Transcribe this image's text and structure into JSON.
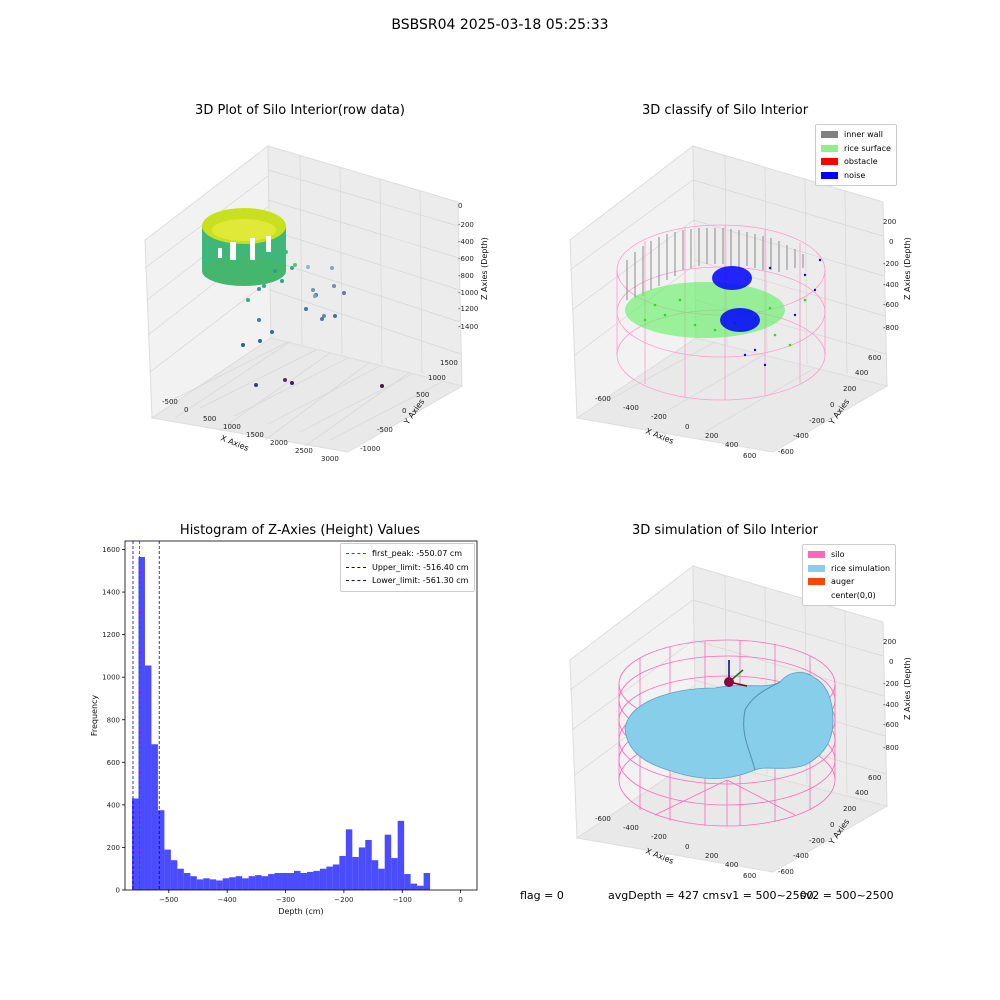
{
  "suptitle": "BSBSR04 2025-03-18 05:25:33",
  "panels": {
    "raw": {
      "title": "3D Plot of Silo Interior(row data)",
      "xlabel": "X Axies",
      "ylabel": "Y Axies",
      "zlabel": "Z Axies (Depth)",
      "xticks": [
        "-500",
        "0",
        "500",
        "1000",
        "1500",
        "2000",
        "2500",
        "3000"
      ],
      "yticks": [
        "-1000",
        "-500",
        "0",
        "500",
        "1000",
        "1500"
      ],
      "zticks": [
        "0",
        "-200",
        "-400",
        "-600",
        "-800",
        "-1000",
        "-1200",
        "-1400"
      ]
    },
    "classify": {
      "title": "3D classify of Silo Interior",
      "xlabel": "X Axies",
      "ylabel": "Y Axies",
      "zlabel": "Z Axies (Depth)",
      "xticks": [
        "-600",
        "-400",
        "-200",
        "0",
        "200",
        "400",
        "600"
      ],
      "yticks": [
        "-600",
        "-400",
        "-200",
        "0",
        "200",
        "400",
        "600"
      ],
      "zticks": [
        "200",
        "0",
        "-200",
        "-400",
        "-600",
        "-800"
      ],
      "legend": [
        {
          "label": "inner wall",
          "color": "#808080"
        },
        {
          "label": "rice surface",
          "color": "#90ee90"
        },
        {
          "label": "obstacle",
          "color": "#ff0000"
        },
        {
          "label": "noise",
          "color": "#0000ff"
        }
      ]
    },
    "histogram": {
      "title": "Histogram of Z-Axies (Height) Values",
      "legend": [
        {
          "label": "first_peak: -550.07 cm",
          "color": "#ff0000"
        },
        {
          "label": "Upper_limit: -516.40 cm",
          "color": "#0000aa"
        },
        {
          "label": "Lower_limit: -561.30 cm",
          "color": "#0000aa"
        }
      ]
    },
    "simulation": {
      "title": "3D simulation of Silo Interior",
      "xlabel": "X Axies",
      "ylabel": "Y Axies",
      "zlabel": "Z Axies (Depth)",
      "xticks": [
        "-600",
        "-400",
        "-200",
        "0",
        "200",
        "400",
        "600"
      ],
      "yticks": [
        "-600",
        "-400",
        "-200",
        "0",
        "200",
        "400",
        "600"
      ],
      "zticks": [
        "200",
        "0",
        "-200",
        "-400",
        "-600",
        "-800"
      ],
      "legend": [
        {
          "label": "silo",
          "color": "#ff69b4"
        },
        {
          "label": "rice simulation",
          "color": "#87ceeb"
        },
        {
          "label": "auger",
          "color": "#ff4500"
        },
        {
          "label": "center(0,0)",
          "color": "#ffffff"
        }
      ]
    }
  },
  "footer": {
    "flag": "flag = 0",
    "avg": "avgDepth = 427 cm",
    "sv1": "sv1 = 500~2500",
    "sv2": "sv2 = 500~2500"
  },
  "chart_data": {
    "type": "bar",
    "title": "Histogram of Z-Axies (Height) Values",
    "xlabel": "Depth (cm)",
    "ylabel": "Frequency",
    "xlim": [
      -575,
      28
    ],
    "ylim": [
      0,
      1640
    ],
    "xticks": [
      -500,
      -400,
      -300,
      -200,
      -100,
      0
    ],
    "yticks": [
      0,
      200,
      400,
      600,
      800,
      1000,
      1200,
      1400,
      1600
    ],
    "bin_start": -563,
    "bin_width": 11.1,
    "values": [
      430,
      1565,
      1055,
      685,
      375,
      190,
      140,
      100,
      80,
      65,
      50,
      55,
      50,
      45,
      55,
      60,
      65,
      55,
      65,
      70,
      65,
      75,
      80,
      80,
      80,
      90,
      80,
      85,
      90,
      100,
      110,
      120,
      160,
      285,
      155,
      200,
      235,
      140,
      100,
      260,
      150,
      325,
      75,
      30,
      20,
      80
    ],
    "vlines": [
      {
        "name": "first_peak",
        "x": -550.07,
        "color": "#ff0000"
      },
      {
        "name": "Upper_limit",
        "x": -516.4,
        "color": "#0000aa"
      },
      {
        "name": "Lower_limit",
        "x": -561.3,
        "color": "#0000aa"
      }
    ]
  }
}
